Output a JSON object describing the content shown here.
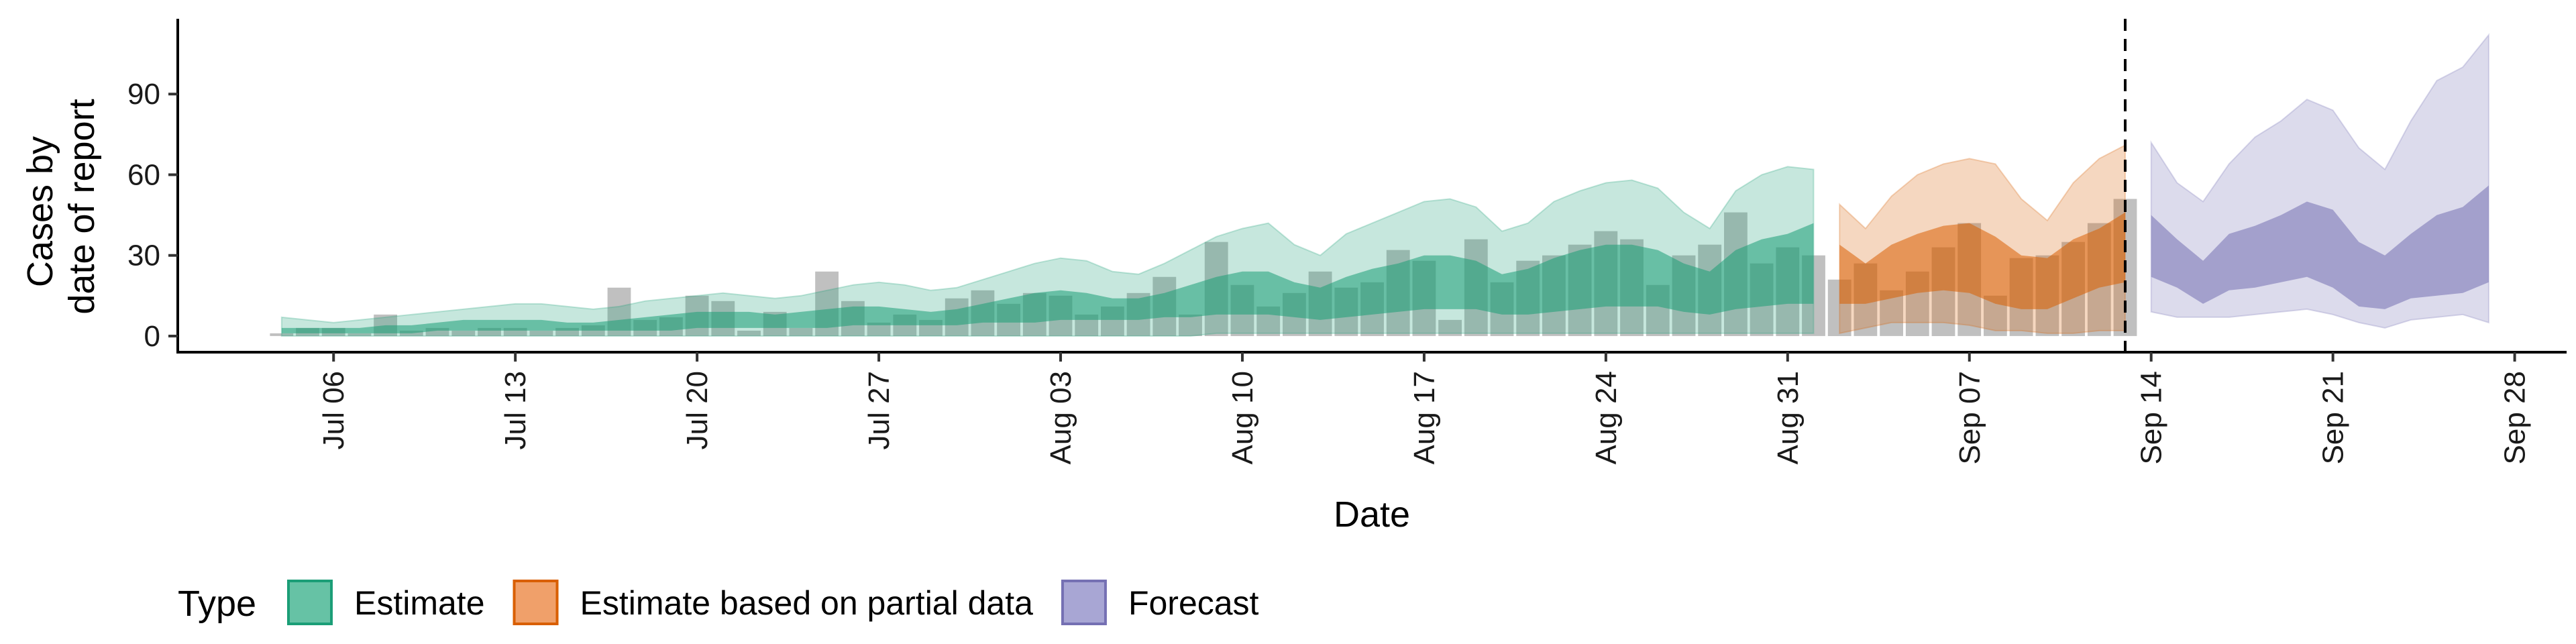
{
  "chart_data": {
    "type": "area",
    "xlabel": "Date",
    "ylabel_lines": [
      "Cases by",
      "date of report"
    ],
    "x_range": [
      "2020-06-30",
      "2020-09-30"
    ],
    "ylim": [
      -6,
      118
    ],
    "y_ticks": [
      0,
      30,
      60,
      90
    ],
    "x_ticks": [
      {
        "date": "2020-07-06",
        "label": "Jul 06"
      },
      {
        "date": "2020-07-13",
        "label": "Jul 13"
      },
      {
        "date": "2020-07-20",
        "label": "Jul 20"
      },
      {
        "date": "2020-07-27",
        "label": "Jul 27"
      },
      {
        "date": "2020-08-03",
        "label": "Aug 03"
      },
      {
        "date": "2020-08-10",
        "label": "Aug 10"
      },
      {
        "date": "2020-08-17",
        "label": "Aug 17"
      },
      {
        "date": "2020-08-24",
        "label": "Aug 24"
      },
      {
        "date": "2020-08-31",
        "label": "Aug 31"
      },
      {
        "date": "2020-09-07",
        "label": "Sep 07"
      },
      {
        "date": "2020-09-14",
        "label": "Sep 14"
      },
      {
        "date": "2020-09-21",
        "label": "Sep 21"
      },
      {
        "date": "2020-09-28",
        "label": "Sep 28"
      }
    ],
    "forecast_date": "2020-09-13",
    "bars": {
      "start": "2020-07-04",
      "values": [
        1,
        3,
        3,
        1,
        8,
        2,
        3,
        2,
        3,
        3,
        2,
        3,
        4,
        18,
        6,
        7,
        15,
        13,
        2,
        9,
        3,
        24,
        13,
        5,
        8,
        6,
        14,
        17,
        12,
        16,
        15,
        8,
        11,
        16,
        22,
        8,
        35,
        19,
        11,
        16,
        24,
        18,
        20,
        32,
        28,
        6,
        36,
        20,
        28,
        30,
        34,
        39,
        36,
        19,
        30,
        34,
        46,
        27,
        33,
        30,
        21,
        27,
        17,
        24,
        33,
        42,
        15,
        29,
        30,
        35,
        42,
        51
      ]
    },
    "legend": {
      "title": "Type",
      "items": [
        {
          "label": "Estimate",
          "fill": "#66c2a5",
          "stroke": "#1b9e77"
        },
        {
          "label": "Estimate based on partial data",
          "fill": "#f0a06a",
          "stroke": "#d95f02"
        },
        {
          "label": "Forecast",
          "fill": "#a8a6d4",
          "stroke": "#7570b3"
        }
      ]
    },
    "series": [
      {
        "name": "Estimate",
        "start": "2020-07-04",
        "outer_color": "#1b9e77",
        "inner_color": "#1b9e77",
        "outer_lower": [
          0,
          0,
          0,
          0,
          0,
          0,
          0,
          0,
          0,
          0,
          0,
          0,
          0,
          0,
          0,
          0,
          0,
          0,
          0,
          0,
          0,
          0,
          0,
          0,
          0,
          0,
          0,
          0,
          0,
          0,
          0,
          0,
          0,
          0,
          0,
          0,
          1,
          1,
          1,
          1,
          1,
          1,
          1,
          1,
          1,
          1,
          1,
          1,
          1,
          1,
          1,
          1,
          1,
          1,
          1,
          1,
          1,
          1,
          1,
          1
        ],
        "outer_upper": [
          7,
          6,
          5,
          6,
          7,
          8,
          9,
          10,
          11,
          12,
          12,
          11,
          10,
          11,
          13,
          14,
          15,
          16,
          15,
          14,
          15,
          17,
          19,
          20,
          19,
          17,
          18,
          21,
          24,
          27,
          29,
          28,
          24,
          23,
          27,
          32,
          37,
          40,
          42,
          34,
          30,
          38,
          42,
          46,
          50,
          51,
          48,
          39,
          42,
          50,
          54,
          57,
          58,
          55,
          46,
          40,
          54,
          60,
          63,
          62
        ],
        "inner_lower": [
          1,
          1,
          1,
          1,
          1,
          1,
          2,
          2,
          2,
          2,
          2,
          2,
          2,
          2,
          2,
          2,
          3,
          3,
          3,
          3,
          3,
          3,
          4,
          4,
          4,
          4,
          4,
          5,
          5,
          5,
          6,
          6,
          6,
          6,
          7,
          7,
          8,
          8,
          8,
          7,
          6,
          7,
          8,
          9,
          10,
          10,
          10,
          8,
          8,
          9,
          10,
          11,
          11,
          11,
          9,
          8,
          10,
          11,
          12,
          12
        ],
        "inner_upper": [
          3,
          3,
          3,
          3,
          4,
          4,
          5,
          6,
          6,
          6,
          6,
          5,
          5,
          6,
          7,
          8,
          9,
          9,
          9,
          8,
          9,
          10,
          11,
          11,
          10,
          9,
          10,
          12,
          14,
          16,
          17,
          16,
          14,
          14,
          16,
          19,
          22,
          24,
          24,
          20,
          18,
          22,
          25,
          27,
          30,
          30,
          28,
          23,
          25,
          29,
          32,
          34,
          34,
          32,
          27,
          24,
          32,
          36,
          38,
          42
        ]
      },
      {
        "name": "Estimate based on partial data",
        "start": "2020-09-02",
        "outer_color": "#d95f02",
        "inner_color": "#d95f02",
        "outer_lower": [
          1,
          3,
          5,
          5,
          5,
          4,
          2,
          2,
          1,
          1,
          2,
          2
        ],
        "outer_upper": [
          49,
          40,
          52,
          60,
          64,
          66,
          64,
          51,
          43,
          57,
          66,
          71
        ],
        "inner_lower": [
          12,
          12,
          14,
          16,
          17,
          16,
          12,
          10,
          10,
          14,
          18,
          20
        ],
        "inner_upper": [
          34,
          27,
          34,
          38,
          41,
          42,
          37,
          30,
          29,
          36,
          40,
          46
        ]
      },
      {
        "name": "Forecast",
        "start": "2020-09-14",
        "outer_color": "#7570b3",
        "inner_color": "#7570b3",
        "outer_lower": [
          9,
          7,
          7,
          7,
          8,
          9,
          10,
          8,
          5,
          3,
          6,
          7,
          8,
          5
        ],
        "outer_upper": [
          72,
          57,
          50,
          64,
          74,
          80,
          88,
          84,
          70,
          62,
          80,
          95,
          100,
          112
        ],
        "inner_lower": [
          22,
          18,
          12,
          17,
          18,
          20,
          22,
          18,
          11,
          10,
          14,
          15,
          16,
          20
        ],
        "inner_upper": [
          45,
          36,
          28,
          38,
          41,
          45,
          50,
          47,
          35,
          30,
          38,
          45,
          48,
          56
        ]
      }
    ]
  }
}
